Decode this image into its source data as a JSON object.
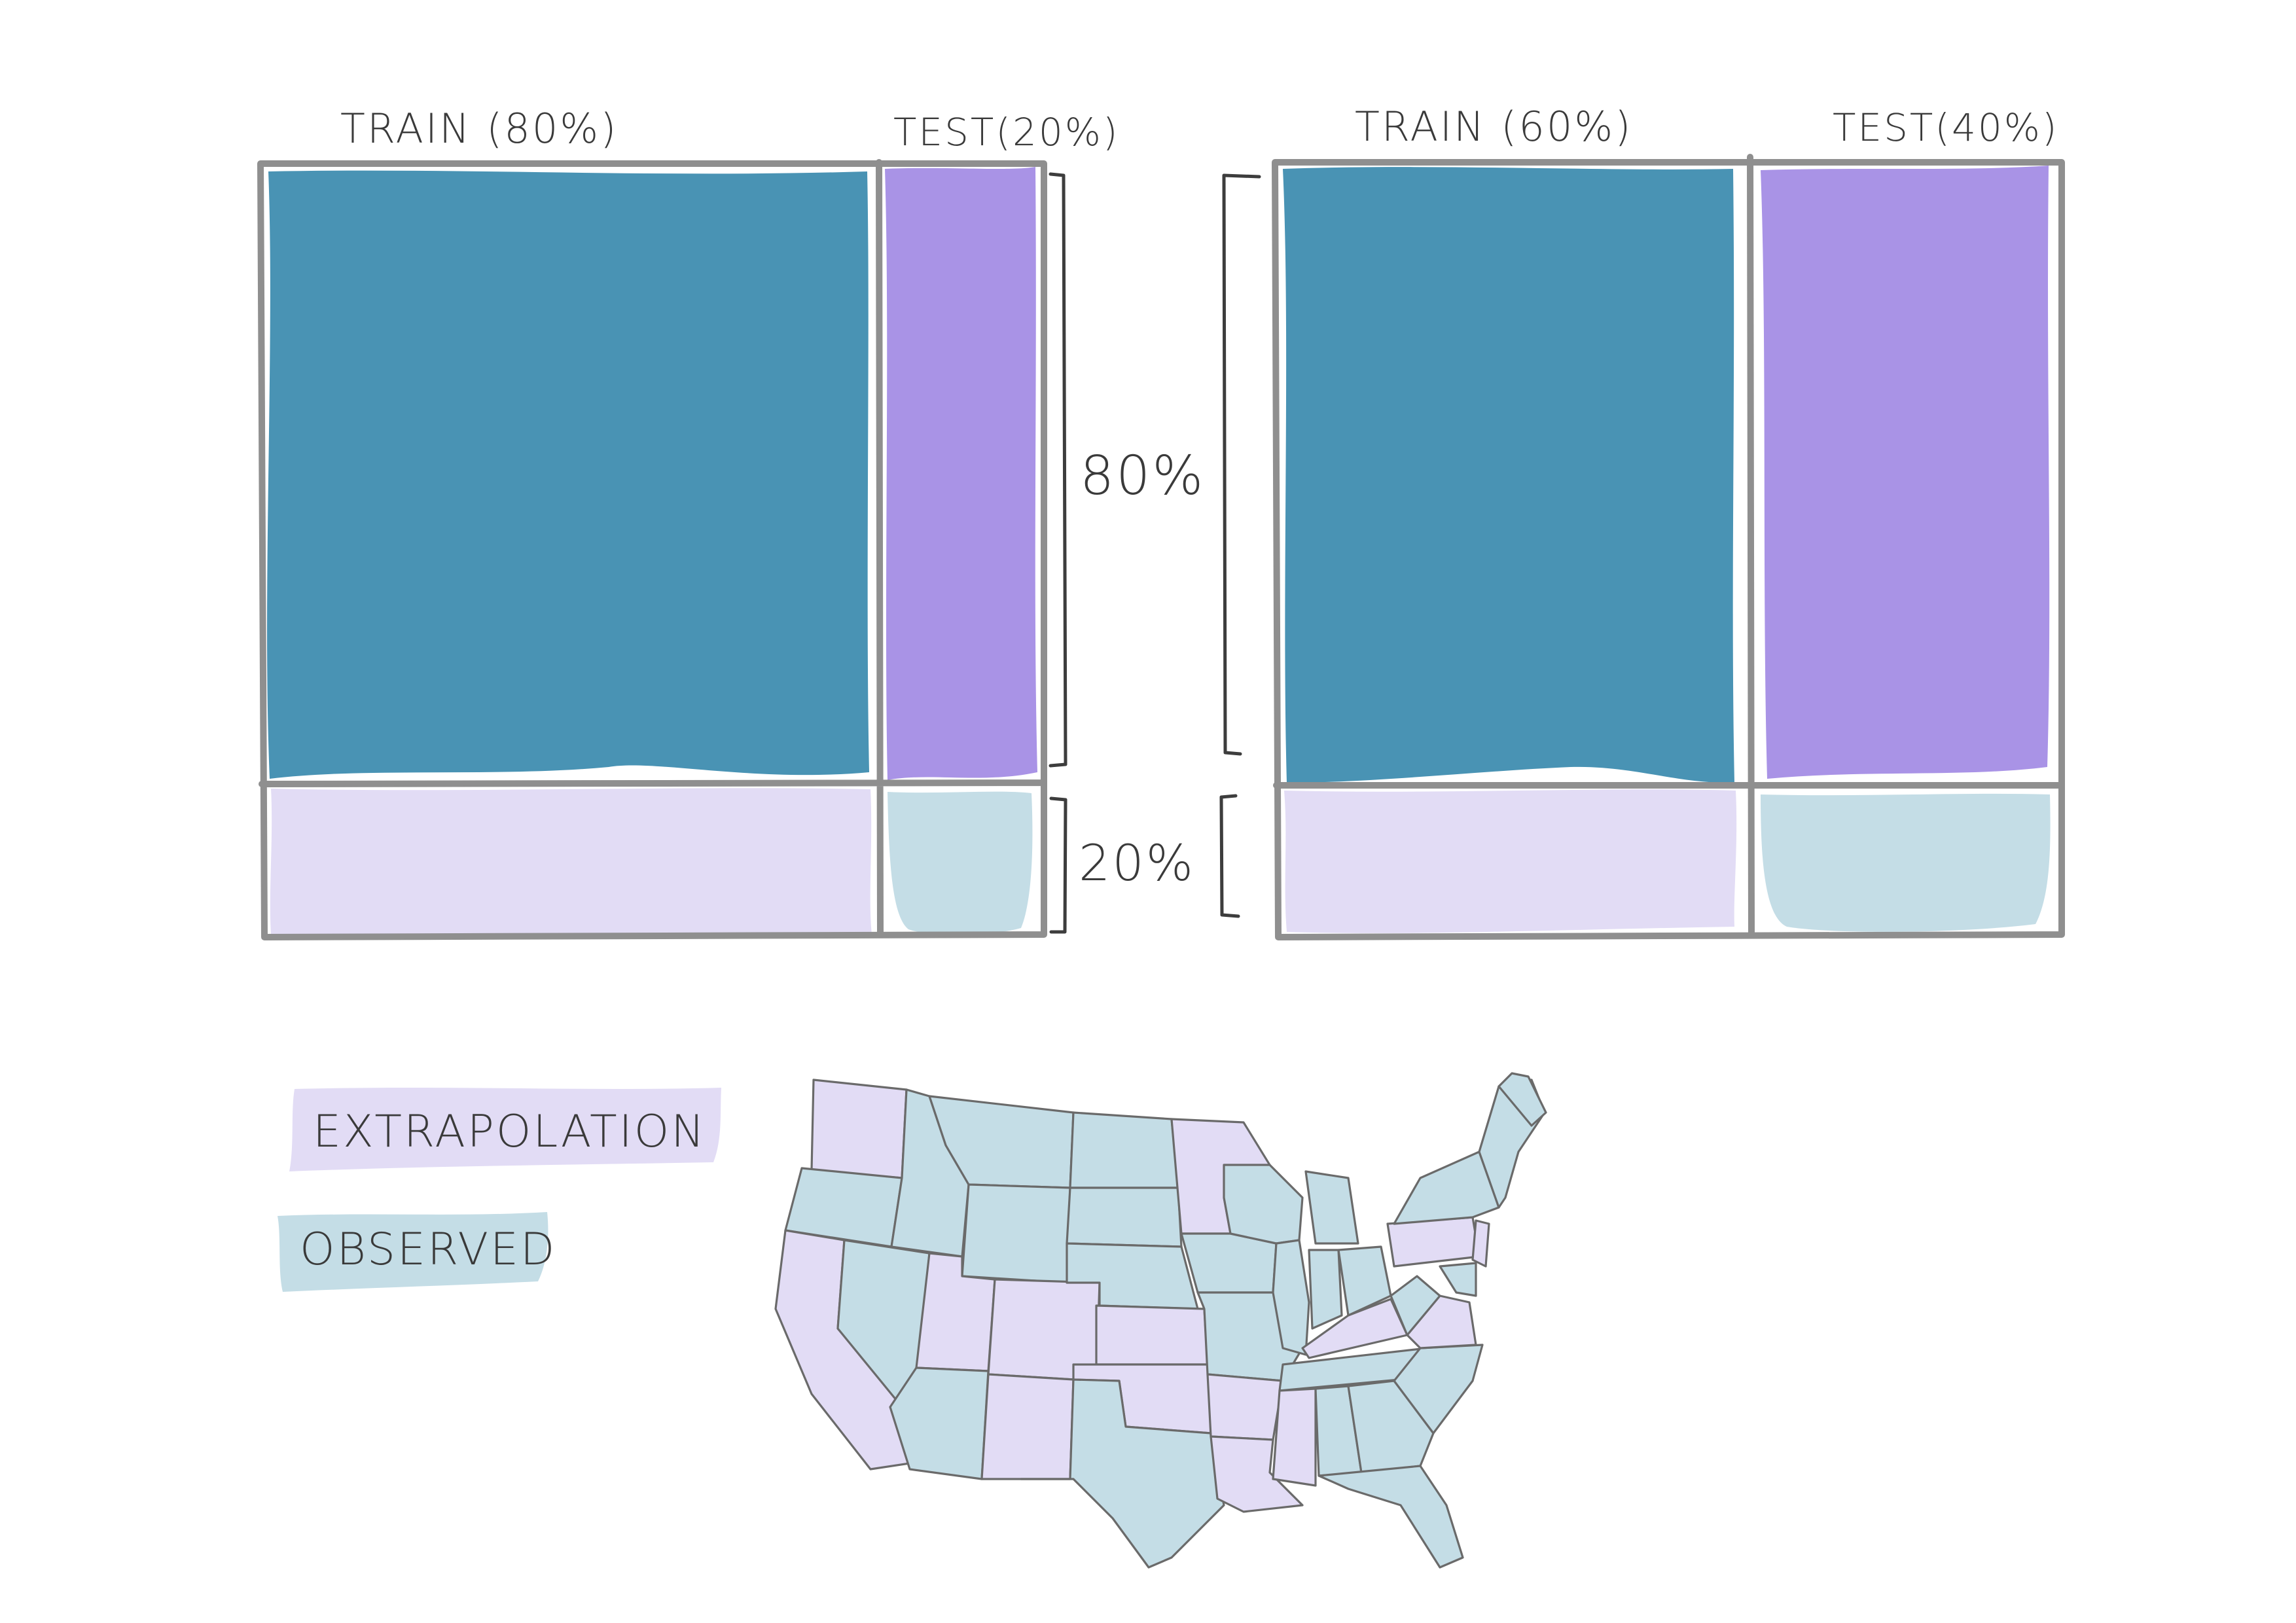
{
  "left_split": {
    "train_label": "TRAIN (80%)",
    "test_label": "TEST(20%)",
    "row_top_label": "80%",
    "row_bottom_label": "20%"
  },
  "right_split": {
    "train_label": "TRAIN (60%)",
    "test_label": "TEST(40%)"
  },
  "legend": {
    "extrapolation": "EXTRAPOLATION",
    "observed": "OBSERVED"
  },
  "colors": {
    "train": "#4993b4",
    "test": "#a993e6",
    "extrapolation": "#e2dcf5",
    "observed": "#c4dde6",
    "frame": "#8f8f8f",
    "ink": "#3a3a3a"
  }
}
